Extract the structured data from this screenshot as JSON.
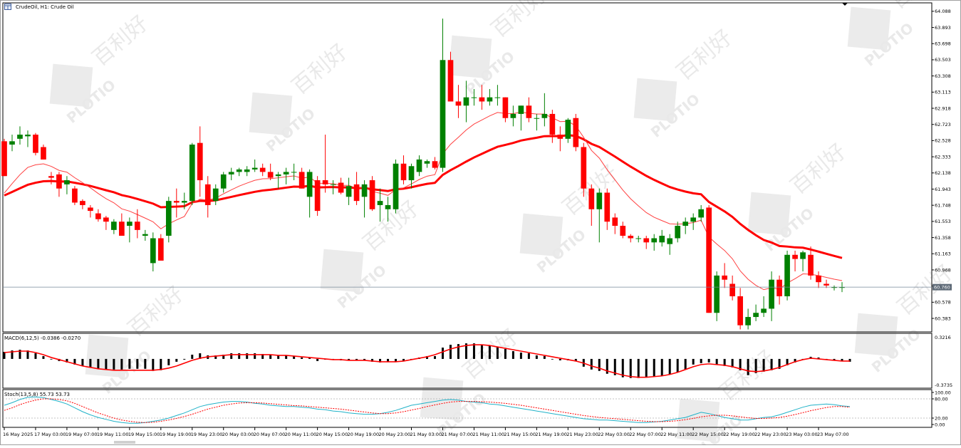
{
  "window": {
    "title_symbol": "CrudeOil, H1:",
    "title_desc": "Crude Oil"
  },
  "colors": {
    "bull": "#008000",
    "bear": "#ff0000",
    "ma_slow": "#ff0000",
    "ma_fast": "#ff4040",
    "macd_signal": "#ff0000",
    "macd_hist": "#000000",
    "stoch_main": "#20b2c8",
    "stoch_signal": "#ff0000",
    "price_line": "#778899",
    "price_tag_bg": "#5f6b78",
    "grid": "#c0c0c0"
  },
  "macd": {
    "label": "MACD(6,12,5) -0.0386 -0.0270",
    "axis_max": "0.3216",
    "axis_min": "-0.3735"
  },
  "stoch": {
    "label": "Stoch(13,5,8) 55.73 53.73",
    "levels": [
      "100.00",
      "80.00",
      "20.00",
      "0.00"
    ]
  },
  "watermark": {
    "brand": "PLOTIO",
    "chars": "百利好"
  },
  "chart_data": {
    "type": "candlestick",
    "title": "CrudeOil, H1: Crude Oil",
    "current_price": "60.760",
    "y_ticks": [
      "64.088",
      "63.893",
      "63.698",
      "63.503",
      "63.308",
      "63.113",
      "62.918",
      "62.723",
      "62.528",
      "62.333",
      "62.138",
      "61.943",
      "61.748",
      "61.553",
      "61.358",
      "61.163",
      "60.968",
      "60.773",
      "60.578",
      "60.383"
    ],
    "ylim": [
      60.22,
      64.19
    ],
    "x_labels": [
      "16 May 2025",
      "17 May 03:00",
      "19 May 07:00",
      "19 May 11:00",
      "19 May 15:00",
      "19 May 19:00",
      "19 May 23:00",
      "20 May 03:00",
      "20 May 07:00",
      "20 May 11:00",
      "20 May 15:00",
      "20 May 19:00",
      "20 May 23:00",
      "21 May 03:00",
      "21 May 07:00",
      "21 May 11:00",
      "21 May 15:00",
      "21 May 19:00",
      "21 May 23:00",
      "22 May 03:00",
      "22 May 07:00",
      "22 May 11:00",
      "22 May 15:00",
      "22 May 19:00",
      "22 May 23:00",
      "23 May 03:00",
      "23 May 07:00"
    ],
    "x_label_index": [
      0,
      4,
      8,
      12,
      16,
      20,
      24,
      28,
      32,
      36,
      40,
      44,
      48,
      52,
      56,
      60,
      64,
      68,
      72,
      76,
      80,
      84,
      88,
      92,
      96,
      100,
      104
    ],
    "ohlc": [
      [
        62.52,
        62.55,
        62.1,
        62.1
      ],
      [
        62.48,
        62.6,
        62.4,
        62.52
      ],
      [
        62.55,
        62.7,
        62.48,
        62.6
      ],
      [
        62.58,
        62.65,
        62.45,
        62.6
      ],
      [
        62.6,
        62.62,
        62.35,
        62.38
      ],
      [
        62.45,
        62.48,
        62.3,
        62.3
      ],
      [
        62.1,
        62.15,
        62.0,
        62.08
      ],
      [
        62.12,
        62.15,
        61.85,
        61.95
      ],
      [
        62.0,
        62.1,
        61.88,
        62.05
      ],
      [
        61.95,
        61.98,
        61.75,
        61.78
      ],
      [
        61.8,
        61.82,
        61.7,
        61.75
      ],
      [
        61.72,
        61.75,
        61.6,
        61.68
      ],
      [
        61.65,
        61.7,
        61.55,
        61.58
      ],
      [
        61.6,
        61.62,
        61.45,
        61.55
      ],
      [
        61.45,
        61.58,
        61.4,
        61.55
      ],
      [
        61.55,
        61.65,
        61.4,
        61.38
      ],
      [
        61.5,
        61.6,
        61.3,
        61.55
      ],
      [
        61.55,
        61.7,
        61.35,
        61.45
      ],
      [
        61.38,
        61.45,
        61.32,
        61.4
      ],
      [
        61.05,
        61.42,
        60.95,
        61.35
      ],
      [
        61.35,
        61.4,
        61.1,
        61.08
      ],
      [
        61.38,
        61.85,
        61.3,
        61.8
      ],
      [
        61.8,
        61.95,
        61.6,
        61.78
      ],
      [
        61.78,
        61.9,
        61.7,
        61.8
      ],
      [
        61.8,
        62.5,
        61.75,
        62.48
      ],
      [
        62.5,
        62.7,
        61.85,
        62.05
      ],
      [
        62.0,
        62.1,
        61.6,
        61.75
      ],
      [
        61.8,
        62.0,
        61.75,
        61.95
      ],
      [
        61.95,
        62.15,
        61.9,
        62.12
      ],
      [
        62.12,
        62.2,
        62.05,
        62.15
      ],
      [
        62.15,
        62.2,
        62.1,
        62.18
      ],
      [
        62.15,
        62.22,
        62.1,
        62.18
      ],
      [
        62.18,
        62.3,
        62.15,
        62.2
      ],
      [
        62.2,
        62.25,
        62.1,
        62.15
      ],
      [
        62.15,
        62.25,
        62.05,
        62.08
      ],
      [
        62.1,
        62.15,
        61.95,
        62.12
      ],
      [
        62.12,
        62.2,
        62.0,
        62.15
      ],
      [
        62.15,
        62.25,
        62.05,
        62.15
      ],
      [
        62.15,
        62.2,
        61.95,
        61.95
      ],
      [
        61.85,
        62.18,
        61.6,
        62.15
      ],
      [
        62.05,
        62.1,
        61.62,
        61.68
      ],
      [
        62.05,
        62.6,
        61.9,
        62.0
      ],
      [
        62.0,
        62.05,
        61.88,
        62.0
      ],
      [
        62.02,
        62.08,
        61.88,
        61.9
      ],
      [
        61.85,
        62.08,
        61.75,
        61.98
      ],
      [
        62.0,
        62.15,
        61.75,
        61.8
      ],
      [
        61.85,
        62.05,
        61.6,
        62.0
      ],
      [
        62.05,
        62.1,
        61.68,
        61.7
      ],
      [
        61.75,
        61.95,
        61.55,
        61.8
      ],
      [
        61.7,
        61.85,
        61.55,
        61.75
      ],
      [
        61.7,
        62.3,
        61.65,
        62.25
      ],
      [
        62.25,
        62.35,
        62.0,
        62.05
      ],
      [
        62.05,
        62.25,
        61.95,
        62.22
      ],
      [
        62.15,
        62.35,
        62.1,
        62.3
      ],
      [
        62.25,
        62.3,
        62.2,
        62.28
      ],
      [
        62.28,
        62.33,
        62.18,
        62.2
      ],
      [
        62.2,
        64.0,
        62.15,
        63.5
      ],
      [
        63.5,
        63.6,
        63.0,
        63.0
      ],
      [
        63.0,
        63.2,
        62.8,
        62.95
      ],
      [
        62.95,
        63.25,
        62.75,
        63.05
      ],
      [
        63.05,
        63.15,
        62.95,
        63.05
      ],
      [
        63.05,
        63.2,
        62.9,
        63.0
      ],
      [
        63.0,
        63.15,
        62.95,
        63.05
      ],
      [
        63.05,
        63.2,
        62.95,
        63.05
      ],
      [
        63.05,
        63.05,
        62.75,
        62.8
      ],
      [
        62.8,
        62.95,
        62.7,
        62.85
      ],
      [
        62.85,
        62.95,
        62.65,
        62.95
      ],
      [
        62.95,
        63.05,
        62.75,
        62.8
      ],
      [
        62.8,
        62.85,
        62.65,
        62.8
      ],
      [
        62.8,
        63.1,
        62.7,
        62.85
      ],
      [
        62.85,
        62.9,
        62.5,
        62.6
      ],
      [
        62.6,
        62.7,
        62.4,
        62.55
      ],
      [
        62.55,
        62.8,
        62.5,
        62.78
      ],
      [
        62.8,
        62.85,
        62.4,
        62.45
      ],
      [
        62.45,
        62.5,
        61.85,
        61.95
      ],
      [
        61.95,
        62.0,
        61.5,
        61.7
      ],
      [
        61.7,
        61.95,
        61.3,
        61.9
      ],
      [
        61.9,
        61.95,
        61.45,
        61.55
      ],
      [
        61.6,
        61.65,
        61.4,
        61.5
      ],
      [
        61.5,
        61.55,
        61.35,
        61.38
      ],
      [
        61.38,
        61.4,
        61.3,
        61.35
      ],
      [
        61.35,
        61.38,
        61.3,
        61.35
      ],
      [
        61.35,
        61.38,
        61.22,
        61.3
      ],
      [
        61.3,
        61.4,
        61.2,
        61.35
      ],
      [
        61.3,
        61.45,
        61.25,
        61.38
      ],
      [
        61.28,
        61.4,
        61.15,
        61.35
      ],
      [
        61.35,
        61.55,
        61.3,
        61.5
      ],
      [
        61.5,
        61.6,
        61.4,
        61.55
      ],
      [
        61.55,
        61.65,
        61.45,
        61.6
      ],
      [
        61.6,
        61.75,
        61.55,
        61.7
      ],
      [
        61.72,
        61.75,
        60.45,
        60.45
      ],
      [
        60.45,
        60.95,
        60.35,
        60.9
      ],
      [
        60.9,
        61.05,
        60.75,
        60.85
      ],
      [
        60.8,
        60.9,
        60.6,
        60.65
      ],
      [
        60.65,
        60.75,
        60.25,
        60.3
      ],
      [
        60.3,
        60.5,
        60.25,
        60.4
      ],
      [
        60.4,
        60.55,
        60.35,
        60.45
      ],
      [
        60.45,
        60.65,
        60.4,
        60.5
      ],
      [
        60.5,
        60.95,
        60.35,
        60.85
      ],
      [
        60.85,
        60.9,
        60.55,
        60.65
      ],
      [
        60.65,
        61.2,
        60.6,
        61.15
      ],
      [
        61.15,
        61.2,
        60.95,
        61.1
      ],
      [
        61.1,
        61.2,
        60.95,
        61.18
      ],
      [
        61.15,
        61.25,
        60.85,
        60.9
      ],
      [
        60.9,
        60.95,
        60.75,
        60.82
      ],
      [
        60.8,
        60.85,
        60.75,
        60.78
      ],
      [
        60.76,
        60.78,
        60.72,
        60.76
      ],
      [
        60.76,
        60.82,
        60.7,
        60.76
      ]
    ],
    "macd_hist": [
      0.1,
      0.12,
      0.13,
      0.12,
      0.08,
      0.04,
      0.0,
      -0.03,
      -0.05,
      -0.08,
      -0.1,
      -0.12,
      -0.14,
      -0.15,
      -0.15,
      -0.15,
      -0.14,
      -0.14,
      -0.14,
      -0.17,
      -0.16,
      -0.09,
      -0.04,
      -0.01,
      0.06,
      0.08,
      0.05,
      0.05,
      0.06,
      0.08,
      0.08,
      0.08,
      0.08,
      0.07,
      0.06,
      0.05,
      0.05,
      0.04,
      0.02,
      0.02,
      -0.03,
      -0.01,
      -0.01,
      -0.02,
      -0.02,
      -0.02,
      -0.02,
      -0.04,
      -0.05,
      -0.04,
      -0.04,
      -0.03,
      -0.01,
      0.02,
      0.04,
      0.04,
      0.16,
      0.2,
      0.21,
      0.22,
      0.22,
      0.2,
      0.19,
      0.17,
      0.14,
      0.11,
      0.09,
      0.08,
      0.05,
      0.04,
      0.0,
      -0.02,
      -0.02,
      -0.03,
      -0.11,
      -0.15,
      -0.17,
      -0.21,
      -0.23,
      -0.26,
      -0.27,
      -0.27,
      -0.26,
      -0.25,
      -0.24,
      -0.22,
      -0.19,
      -0.15,
      -0.08,
      -0.06,
      -0.05,
      -0.08,
      -0.1,
      -0.12,
      -0.16,
      -0.23,
      -0.2,
      -0.18,
      -0.16,
      -0.14,
      -0.09,
      -0.05,
      -0.01,
      0.03,
      0.02,
      -0.01,
      -0.02,
      -0.03,
      -0.04
    ],
    "macd_signal": [
      0.09,
      0.1,
      0.11,
      0.11,
      0.09,
      0.06,
      0.02,
      -0.01,
      -0.04,
      -0.07,
      -0.1,
      -0.12,
      -0.14,
      -0.15,
      -0.16,
      -0.16,
      -0.16,
      -0.16,
      -0.16,
      -0.16,
      -0.15,
      -0.13,
      -0.1,
      -0.06,
      -0.02,
      0.01,
      0.03,
      0.04,
      0.05,
      0.06,
      0.06,
      0.06,
      0.06,
      0.06,
      0.06,
      0.05,
      0.05,
      0.04,
      0.03,
      0.02,
      0.01,
      0.0,
      -0.01,
      -0.01,
      -0.02,
      -0.02,
      -0.02,
      -0.03,
      -0.04,
      -0.04,
      -0.04,
      -0.03,
      -0.01,
      0.01,
      0.03,
      0.06,
      0.1,
      0.14,
      0.17,
      0.19,
      0.2,
      0.2,
      0.19,
      0.17,
      0.15,
      0.13,
      0.11,
      0.09,
      0.07,
      0.05,
      0.03,
      0.01,
      -0.01,
      -0.03,
      -0.06,
      -0.1,
      -0.13,
      -0.17,
      -0.2,
      -0.23,
      -0.25,
      -0.26,
      -0.26,
      -0.25,
      -0.24,
      -0.22,
      -0.19,
      -0.15,
      -0.11,
      -0.08,
      -0.07,
      -0.08,
      -0.09,
      -0.11,
      -0.14,
      -0.17,
      -0.18,
      -0.17,
      -0.15,
      -0.12,
      -0.08,
      -0.04,
      -0.01,
      0.01,
      0.0,
      -0.01,
      -0.02,
      -0.03,
      -0.03
    ],
    "stoch_main": [
      60,
      68,
      78,
      85,
      86,
      84,
      78,
      72,
      64,
      52,
      40,
      30,
      22,
      16,
      10,
      6,
      4,
      4,
      6,
      10,
      14,
      20,
      28,
      36,
      46,
      56,
      62,
      66,
      70,
      72,
      72,
      70,
      66,
      64,
      60,
      58,
      56,
      56,
      54,
      52,
      48,
      46,
      42,
      40,
      36,
      34,
      32,
      32,
      34,
      38,
      44,
      52,
      60,
      64,
      68,
      72,
      76,
      78,
      76,
      72,
      70,
      68,
      64,
      62,
      58,
      54,
      50,
      46,
      42,
      38,
      34,
      30,
      26,
      22,
      18,
      16,
      14,
      14,
      12,
      10,
      8,
      6,
      6,
      8,
      10,
      14,
      18,
      22,
      30,
      38,
      34,
      28,
      22,
      18,
      14,
      14,
      18,
      22,
      24,
      30,
      38,
      46,
      54,
      60,
      62,
      64,
      62,
      58,
      56
    ],
    "stoch_signal": [
      44,
      52,
      62,
      70,
      76,
      80,
      80,
      78,
      74,
      66,
      56,
      46,
      36,
      28,
      20,
      14,
      10,
      7,
      6,
      7,
      10,
      14,
      19,
      25,
      32,
      40,
      48,
      54,
      60,
      64,
      67,
      68,
      68,
      67,
      65,
      63,
      61,
      59,
      58,
      56,
      54,
      52,
      50,
      48,
      45,
      42,
      39,
      36,
      34,
      34,
      36,
      40,
      45,
      50,
      56,
      61,
      66,
      70,
      72,
      72,
      72,
      71,
      70,
      68,
      66,
      63,
      60,
      56,
      52,
      48,
      44,
      40,
      36,
      32,
      28,
      25,
      22,
      20,
      18,
      16,
      14,
      12,
      10,
      9,
      9,
      10,
      12,
      15,
      19,
      24,
      27,
      29,
      29,
      27,
      24,
      21,
      19,
      19,
      20,
      22,
      26,
      31,
      37,
      43,
      48,
      53,
      56,
      56,
      54
    ]
  }
}
